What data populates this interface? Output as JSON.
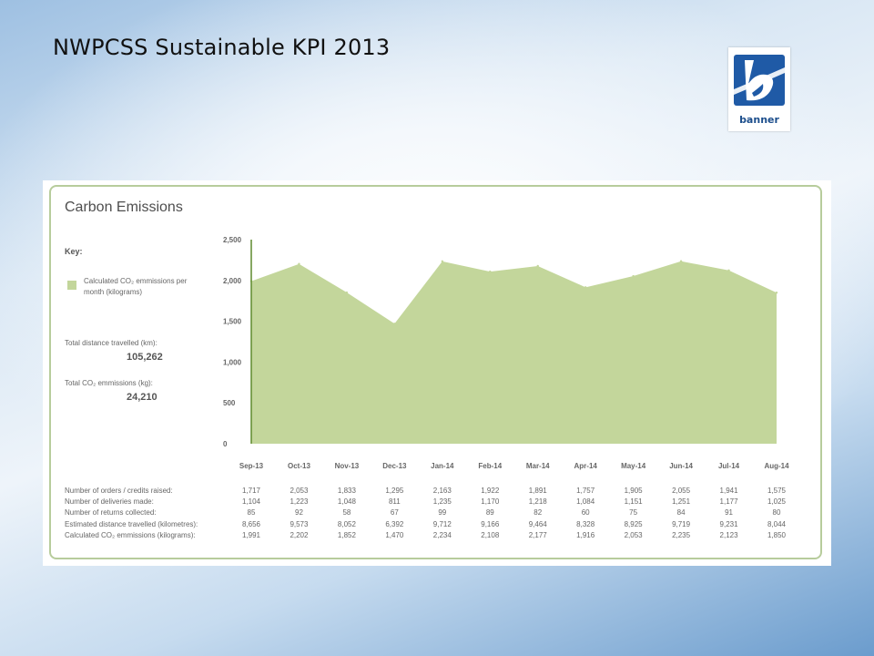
{
  "slide": {
    "title": "NWPCSS Sustainable KPI 2013"
  },
  "logo": {
    "text": "banner"
  },
  "chart_data": {
    "type": "area",
    "title": "Carbon Emissions",
    "key_label": "Key:",
    "legend": [
      "Calculated CO₂ emmissions per month (kilograms)"
    ],
    "categories": [
      "Sep-13",
      "Oct-13",
      "Nov-13",
      "Dec-13",
      "Jan-14",
      "Feb-14",
      "Mar-14",
      "Apr-14",
      "May-14",
      "Jun-14",
      "Jul-14",
      "Aug-14"
    ],
    "series": [
      {
        "name": "Calculated CO₂ emmissions per month (kilograms)",
        "values": [
          1991,
          2202,
          1852,
          1470,
          2234,
          2108,
          2177,
          1916,
          2053,
          2235,
          2123,
          1850
        ]
      }
    ],
    "ylim": [
      0,
      2500
    ],
    "yticks": [
      "0",
      "500",
      "1,000",
      "1,500",
      "2,000",
      "2,500"
    ],
    "color": "#c3d69b",
    "grid": false
  },
  "stats": {
    "distance_label": "Total distance travelled (km):",
    "distance_value": "105,262",
    "co2_label": "Total CO₂ emmissions (kg):",
    "co2_value": "24,210"
  },
  "table": {
    "rows": [
      {
        "label": "Number of orders / credits raised:",
        "values": [
          "1,717",
          "2,053",
          "1,833",
          "1,295",
          "2,163",
          "1,922",
          "1,891",
          "1,757",
          "1,905",
          "2,055",
          "1,941",
          "1,575"
        ]
      },
      {
        "label": "Number of deliveries made:",
        "values": [
          "1,104",
          "1,223",
          "1,048",
          "811",
          "1,235",
          "1,170",
          "1,218",
          "1,084",
          "1,151",
          "1,251",
          "1,177",
          "1,025"
        ]
      },
      {
        "label": "Number of returns collected:",
        "values": [
          "85",
          "92",
          "58",
          "67",
          "99",
          "89",
          "82",
          "60",
          "75",
          "84",
          "91",
          "80"
        ]
      },
      {
        "label": "Estimated distance travelled (kilometres):",
        "values": [
          "8,656",
          "9,573",
          "8,052",
          "6,392",
          "9,712",
          "9,166",
          "9,464",
          "8,328",
          "8,925",
          "9,719",
          "9,231",
          "8,044"
        ]
      },
      {
        "label": "Calculated CO₂ emmissions (kilograms):",
        "values": [
          "1,991",
          "2,202",
          "1,852",
          "1,470",
          "2,234",
          "2,108",
          "2,177",
          "1,916",
          "2,053",
          "2,235",
          "2,123",
          "1,850"
        ]
      }
    ]
  }
}
